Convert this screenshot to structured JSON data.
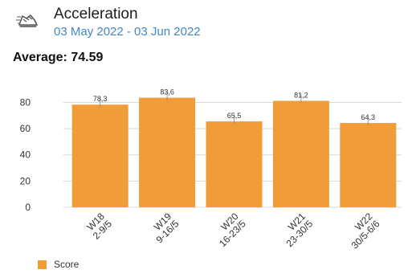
{
  "header": {
    "icon_name": "sprint-shoe-icon",
    "title": "Acceleration",
    "date_range": "03 May 2022 - 03 Jun 2022"
  },
  "summary": {
    "average_label": "Average:",
    "average_value": "74.59"
  },
  "colors": {
    "bar": "#f09c38",
    "subtitle": "#3f88c5",
    "grid": "#d8d8d8"
  },
  "chart_data": {
    "type": "bar",
    "categories": [
      "W18\n2-9/5",
      "W19\n9-16/5",
      "W20\n16-23/5",
      "W21\n23-30/5",
      "W22\n30/5-6/6"
    ],
    "category_lines": [
      [
        "W18",
        "2-9/5"
      ],
      [
        "W19",
        "9-16/5"
      ],
      [
        "W20",
        "16-23/5"
      ],
      [
        "W21",
        "23-30/5"
      ],
      [
        "W22",
        "30/5-6/6"
      ]
    ],
    "series": [
      {
        "name": "Score",
        "values": [
          78.3,
          83.6,
          65.5,
          81.2,
          64.3
        ]
      }
    ],
    "data_labels": [
      "78,3",
      "83,6",
      "65,5",
      "81,2",
      "64,3"
    ],
    "yticks": [
      0,
      20,
      40,
      60,
      80
    ],
    "ylim": [
      0,
      95
    ],
    "xlabel": "",
    "ylabel": "",
    "grid": true,
    "legend_position": "bottom-left"
  },
  "legend": {
    "items": [
      {
        "label": "Score"
      }
    ]
  }
}
